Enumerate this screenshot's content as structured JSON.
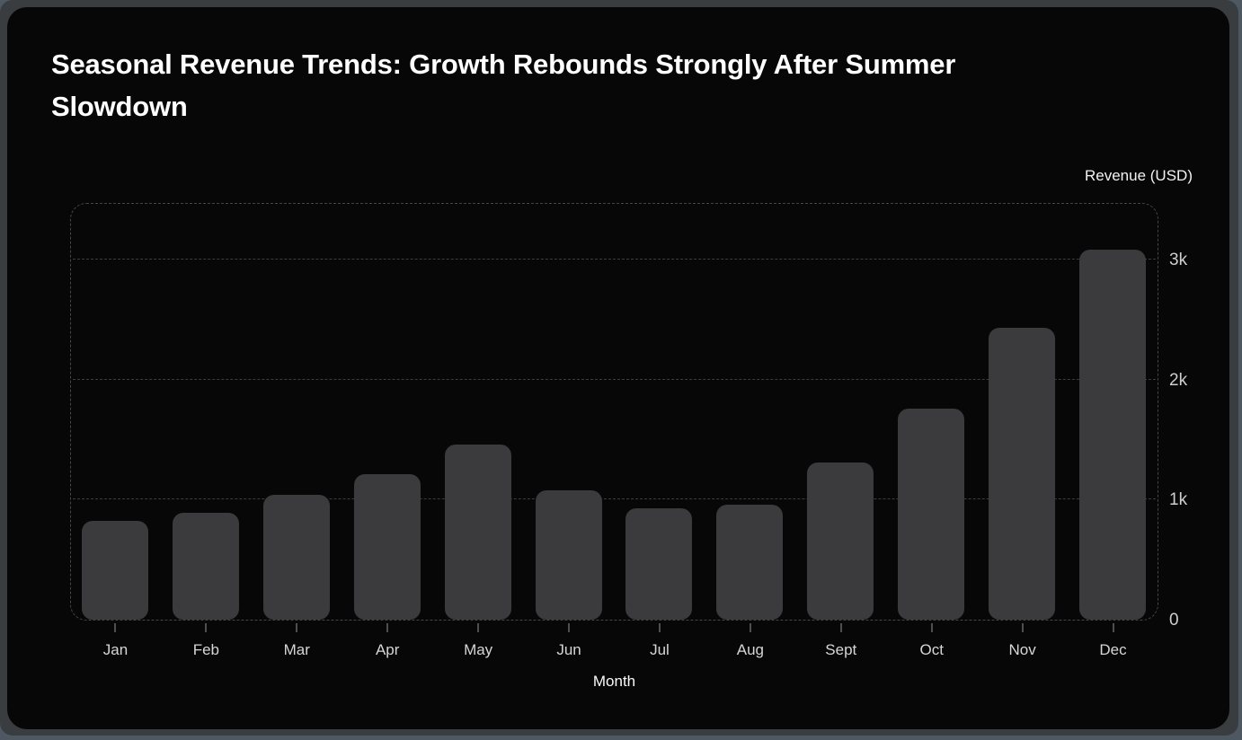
{
  "title": "Seasonal Revenue Trends: Growth Rebounds Strongly After Summer Slowdown",
  "chart_data": {
    "type": "bar",
    "title": "Seasonal Revenue Trends: Growth Rebounds Strongly After Summer Slowdown",
    "xlabel": "Month",
    "ylabel": "Revenue (USD)",
    "categories": [
      "Jan",
      "Feb",
      "Mar",
      "Apr",
      "May",
      "Jun",
      "Jul",
      "Aug",
      "Sept",
      "Oct",
      "Nov",
      "Dec"
    ],
    "values": [
      820,
      890,
      1040,
      1210,
      1460,
      1080,
      930,
      960,
      1310,
      1760,
      2430,
      3080
    ],
    "ylim": [
      0,
      3480
    ],
    "yticks": [
      {
        "label": "0",
        "value": 0
      },
      {
        "label": "1k",
        "value": 1000
      },
      {
        "label": "2k",
        "value": 2000
      },
      {
        "label": "3k",
        "value": 3000
      }
    ],
    "grid": "horizontal-dashed",
    "legend_position": "none",
    "colors": {
      "bar": "#3b3b3d",
      "card_background": "#070708",
      "window_frame": "#3a3d40",
      "desktop_background": "#4d5862",
      "plot_border": "#454545",
      "gridline": "#3d3d3d",
      "tick_mark": "#4f4f4f",
      "title_text": "#ffffff",
      "tick_text": "#cfcfcf",
      "category_text": "#d6d6d6",
      "axis_title_text": "#fafafa"
    }
  }
}
